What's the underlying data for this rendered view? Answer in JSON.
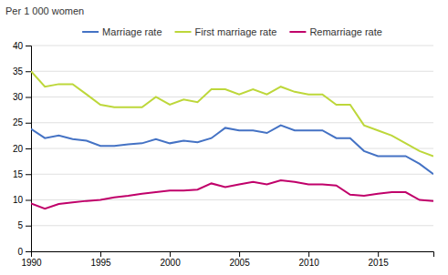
{
  "chart_data": {
    "type": "line",
    "ylabel": "Per 1 000 women",
    "x": [
      1990,
      1991,
      1992,
      1993,
      1994,
      1995,
      1996,
      1997,
      1998,
      1999,
      2000,
      2001,
      2002,
      2003,
      2004,
      2005,
      2006,
      2007,
      2008,
      2009,
      2010,
      2011,
      2012,
      2013,
      2014,
      2015,
      2016,
      2017,
      2018,
      2019
    ],
    "series": [
      {
        "name": "Marriage rate",
        "color": "#4472c4",
        "values": [
          23.8,
          22.0,
          22.5,
          21.8,
          21.5,
          20.5,
          20.5,
          20.8,
          21.0,
          21.8,
          21.0,
          21.5,
          21.2,
          22.0,
          24.0,
          23.5,
          23.5,
          23.0,
          24.5,
          23.5,
          23.5,
          23.5,
          22.0,
          22.0,
          19.5,
          18.5,
          18.5,
          18.5,
          17.0,
          15.0
        ]
      },
      {
        "name": "First marriage rate",
        "color": "#bdd73a",
        "values": [
          35.0,
          32.0,
          32.5,
          32.5,
          30.5,
          28.5,
          28.0,
          28.0,
          28.0,
          30.0,
          28.5,
          29.5,
          29.0,
          31.5,
          31.5,
          30.5,
          31.5,
          30.5,
          32.0,
          31.0,
          30.5,
          30.5,
          28.5,
          28.5,
          24.5,
          23.5,
          22.5,
          21.0,
          19.5,
          18.5
        ]
      },
      {
        "name": "Remarriage rate",
        "color": "#c0006a",
        "values": [
          9.3,
          8.3,
          9.2,
          9.5,
          9.8,
          10.0,
          10.5,
          10.8,
          11.2,
          11.5,
          11.8,
          11.8,
          12.0,
          13.2,
          12.5,
          13.0,
          13.5,
          13.0,
          13.8,
          13.5,
          13.0,
          13.0,
          12.8,
          11.0,
          10.8,
          11.2,
          11.5,
          11.5,
          10.0,
          9.8
        ]
      }
    ],
    "xlim": [
      1990,
      2019
    ],
    "xticks": [
      1990,
      1995,
      2000,
      2005,
      2010,
      2015
    ],
    "ylim": [
      0,
      40
    ],
    "yticks": [
      0,
      5,
      10,
      15,
      20,
      25,
      30,
      35,
      40
    ],
    "grid": true,
    "legend": "top"
  }
}
